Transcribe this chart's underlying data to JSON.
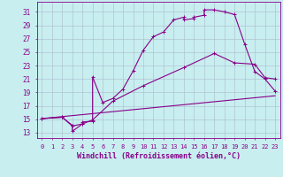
{
  "bg_color": "#c8eef0",
  "grid_color": "#aabbcc",
  "line_color": "#880088",
  "xlabel": "Windchill (Refroidissement éolien,°C)",
  "xlabel_fontsize": 6.0,
  "ytick_vals": [
    13,
    15,
    17,
    19,
    21,
    23,
    25,
    27,
    29,
    31
  ],
  "xtick_vals": [
    0,
    1,
    2,
    3,
    4,
    5,
    6,
    7,
    8,
    9,
    10,
    11,
    12,
    13,
    14,
    15,
    16,
    17,
    18,
    19,
    20,
    21,
    22,
    23
  ],
  "xlim": [
    -0.5,
    23.5
  ],
  "ylim": [
    12.2,
    32.5
  ],
  "line1_x": [
    0,
    2,
    3,
    3,
    4,
    4,
    5,
    5,
    6,
    7,
    8,
    9,
    10,
    11,
    12,
    13,
    14,
    14,
    15,
    15,
    16,
    16,
    17,
    18,
    19,
    20,
    21,
    22,
    23
  ],
  "line1_y": [
    15.1,
    15.3,
    14.1,
    13.2,
    14.3,
    14.6,
    14.7,
    21.3,
    17.5,
    18.1,
    19.5,
    22.2,
    25.3,
    27.3,
    28.0,
    29.8,
    30.2,
    29.8,
    30.0,
    30.2,
    30.5,
    31.3,
    31.3,
    31.0,
    30.6,
    26.2,
    22.1,
    21.0,
    19.2
  ],
  "line2_x": [
    0,
    2,
    3,
    4,
    5,
    7,
    10,
    14,
    17,
    19,
    21,
    22,
    23
  ],
  "line2_y": [
    15.1,
    15.3,
    14.0,
    14.3,
    14.9,
    17.7,
    20.0,
    22.7,
    24.8,
    23.4,
    23.2,
    21.2,
    21.0
  ],
  "line3_x": [
    0,
    23
  ],
  "line3_y": [
    15.1,
    18.5
  ]
}
